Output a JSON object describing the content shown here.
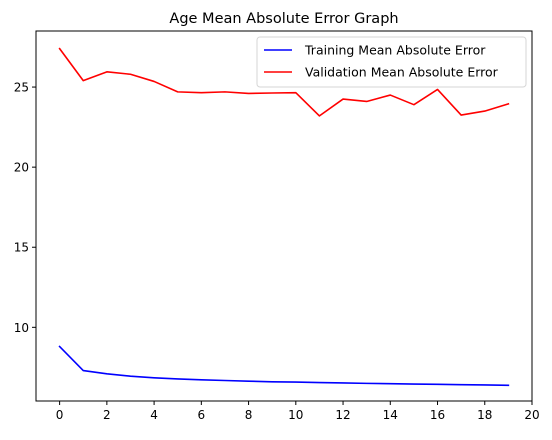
{
  "chart_data": {
    "type": "line",
    "title": "Age Mean Absolute Error Graph",
    "xlabel": "",
    "ylabel": "",
    "xlim": [
      -1,
      20
    ],
    "ylim": [
      5.4,
      28.5
    ],
    "x_ticks": [
      0,
      2,
      4,
      6,
      8,
      10,
      12,
      14,
      16,
      18,
      20
    ],
    "y_ticks": [
      10,
      15,
      20,
      25
    ],
    "grid": false,
    "legend_position": "top-right",
    "x": [
      0,
      1,
      2,
      3,
      4,
      5,
      6,
      7,
      8,
      9,
      10,
      11,
      12,
      13,
      14,
      15,
      16,
      17,
      18,
      19
    ],
    "series": [
      {
        "name": "Training Mean Absolute Error",
        "color": "#0000ff",
        "values": [
          8.8,
          7.3,
          7.1,
          6.95,
          6.85,
          6.78,
          6.72,
          6.68,
          6.64,
          6.6,
          6.58,
          6.55,
          6.53,
          6.5,
          6.48,
          6.46,
          6.44,
          6.42,
          6.4,
          6.38
        ]
      },
      {
        "name": "Validation Mean Absolute Error",
        "color": "#ff0000",
        "values": [
          27.4,
          25.4,
          25.95,
          25.8,
          25.35,
          24.7,
          24.65,
          24.7,
          24.6,
          24.63,
          24.65,
          23.2,
          24.25,
          24.1,
          24.5,
          23.9,
          24.85,
          23.25,
          23.5,
          23.95
        ]
      }
    ]
  }
}
